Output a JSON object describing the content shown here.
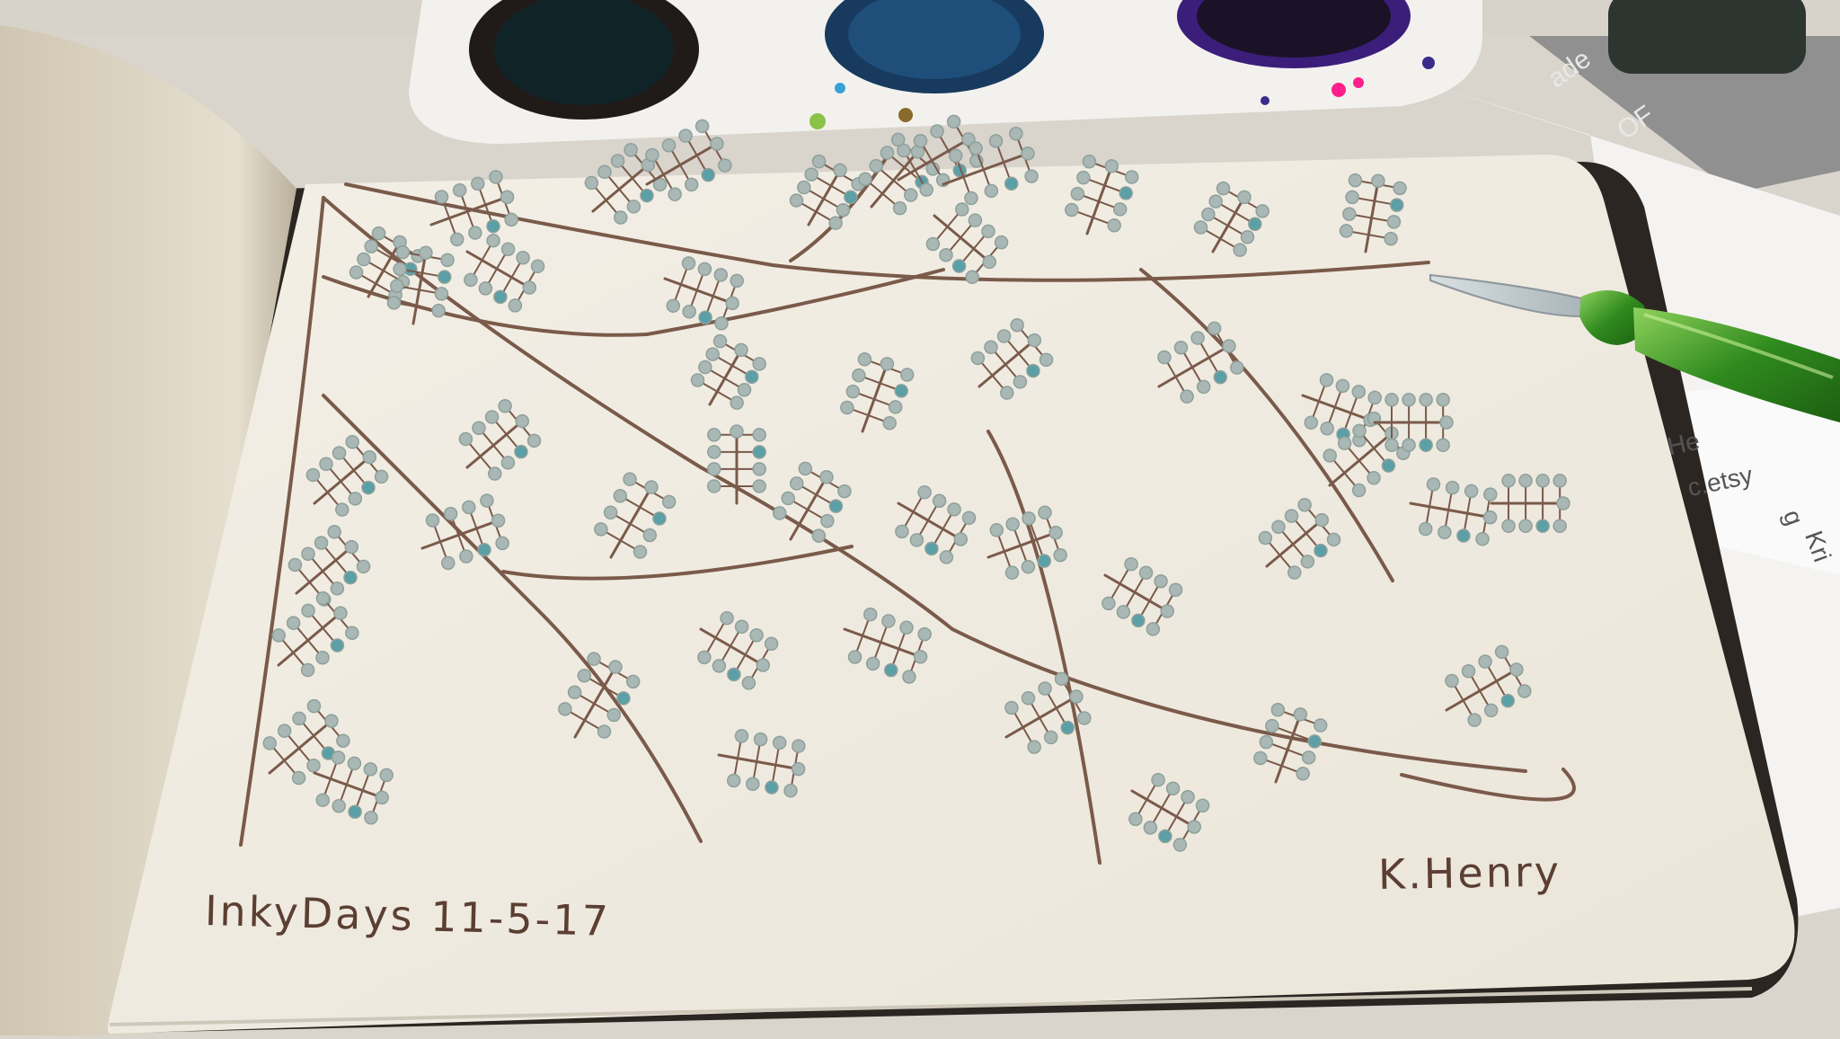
{
  "drawing": {
    "subject": "ink-branches-with-teal-dots",
    "caption": "InkyDays 11-5-17",
    "signature": "K.Henry"
  },
  "background_paper_text": [
    "ade",
    "OF",
    "He",
    "c.etsy",
    "g",
    "Kri"
  ],
  "colors": {
    "ink_branch": "#7a5a4a",
    "berry_fill": "#a9b8b4",
    "berry_teal": "#5aa0a6",
    "sketch_paper": "#f1ece2",
    "left_page": "#e3dbc9",
    "pen_green": "#3f9c2a",
    "table": "#d9d4cc"
  },
  "icons": {
    "pen": "glass-dip-pen-icon",
    "palette": "watercolor-palette-icon"
  }
}
